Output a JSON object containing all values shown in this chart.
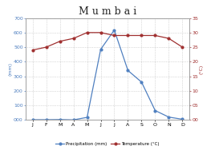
{
  "title": "M u m b a i",
  "months": [
    "J",
    "F",
    "M",
    "A",
    "M",
    "J",
    "J",
    "A",
    "S",
    "O",
    "N",
    "D"
  ],
  "precipitation_mm": [
    2,
    2,
    3,
    1,
    18,
    485,
    617,
    340,
    260,
    65,
    20,
    5
  ],
  "temperature_c": [
    24,
    25,
    27,
    28,
    30,
    30,
    29,
    29,
    29,
    29,
    28,
    25
  ],
  "precip_color": "#5080c0",
  "temp_color": "#a03030",
  "precip_marker": "o",
  "temp_marker": "o",
  "ylim_left": [
    0,
    700
  ],
  "ylim_right": [
    0,
    35
  ],
  "yticks_left": [
    0,
    100,
    200,
    300,
    400,
    500,
    600,
    700
  ],
  "ytick_labels_left": [
    "000",
    "100",
    "200",
    "300",
    "400",
    "500",
    "600",
    "700"
  ],
  "yticks_right": [
    0,
    5,
    10,
    15,
    20,
    25,
    30,
    35
  ],
  "ytick_labels_right": [
    "00",
    "05",
    "10",
    "15",
    "20",
    "25",
    "30",
    "35"
  ],
  "ylabel_left": "(mm)",
  "ylabel_right": "(°C)",
  "legend_precip": "Precipitation (mm)",
  "legend_temp": "Temperature (°C)",
  "bg_color": "#ffffff",
  "grid_color": "#bbbbbb",
  "title_fontsize": 9,
  "axis_fontsize": 4.5,
  "legend_fontsize": 4,
  "label_fontsize": 4.5,
  "marker_size": 2,
  "line_width": 0.9
}
